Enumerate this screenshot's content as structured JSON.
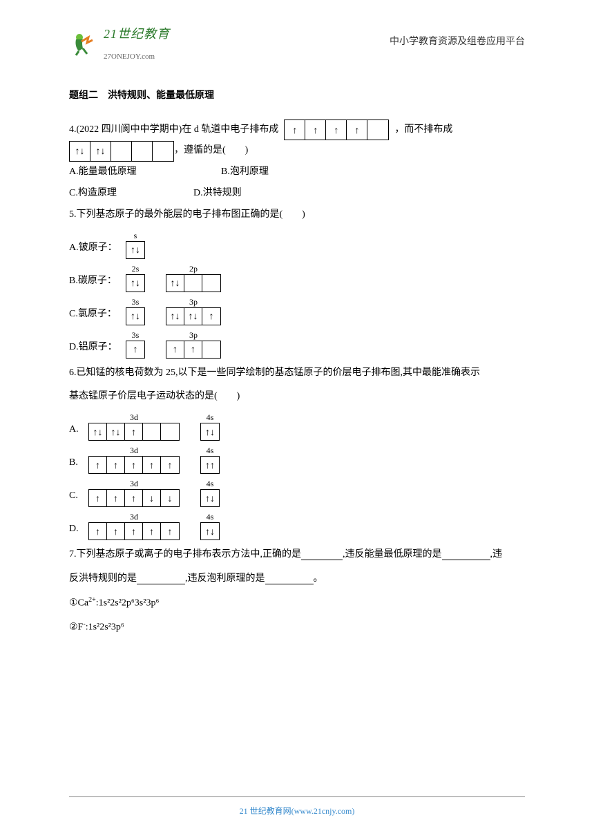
{
  "header": {
    "logo_brand": "21世纪教育",
    "logo_url": "27ONEJOY.com",
    "right": "中小学教育资源及组卷应用平台"
  },
  "section": {
    "title": "题组二　洪特规则、能量最低原理"
  },
  "q4": {
    "prefix": "4.(2022 四川阆中中学期中)在 d 轨道中电子排布成",
    "mid": "，而不排布成",
    "suffix": "，遵循的是(　　)",
    "opts": {
      "a": "A.能量最低原理",
      "b": "B.泡利原理",
      "c": "C.构造原理",
      "d": "D.洪特规则"
    },
    "d1": {
      "boxes": [
        "↑",
        "↑",
        "↑",
        "↑",
        ""
      ]
    },
    "d2": {
      "boxes": [
        "↑↓",
        "↑↓",
        "",
        "",
        ""
      ]
    }
  },
  "q5": {
    "stem": "5.下列基态原子的最外能层的电子排布图正确的是(　　)",
    "a": {
      "pre": "A.铍原子：",
      "g1": {
        "label": "s",
        "boxes": [
          "↑↓"
        ]
      }
    },
    "b": {
      "pre": "B.碳原子：",
      "g1": {
        "label": "2s",
        "boxes": [
          "↑↓"
        ]
      },
      "g2": {
        "label": "2p",
        "boxes": [
          "↑↓",
          "",
          ""
        ]
      }
    },
    "c": {
      "pre": "C.氯原子：",
      "g1": {
        "label": "3s",
        "boxes": [
          "↑↓"
        ]
      },
      "g2": {
        "label": "3p",
        "boxes": [
          "↑↓",
          "↑↓",
          "↑"
        ]
      }
    },
    "d": {
      "pre": "D.铝原子：",
      "g1": {
        "label": "3s",
        "boxes": [
          "↑"
        ]
      },
      "g2": {
        "label": "3p",
        "boxes": [
          "↑",
          "↑",
          ""
        ]
      }
    }
  },
  "q6": {
    "stem1": "6.已知锰的核电荷数为 25,以下是一些同学绘制的基态锰原子的价层电子排布图,其中最能准确表示",
    "stem2": "基态锰原子价层电子运动状态的是(　　)",
    "a": {
      "pre": "A.",
      "g1": {
        "label": "3d",
        "boxes": [
          "↑↓",
          "↑↓",
          "↑",
          "",
          ""
        ]
      },
      "g2": {
        "label": "4s",
        "boxes": [
          "↑↓"
        ]
      }
    },
    "b": {
      "pre": "B.",
      "g1": {
        "label": "3d",
        "boxes": [
          "↑",
          "↑",
          "↑",
          "↑",
          "↑"
        ]
      },
      "g2": {
        "label": "4s",
        "boxes": [
          "↑↑"
        ]
      }
    },
    "c": {
      "pre": "C.",
      "g1": {
        "label": "3d",
        "boxes": [
          "↑",
          "↑",
          "↑",
          "↓",
          "↓"
        ]
      },
      "g2": {
        "label": "4s",
        "boxes": [
          "↑↓"
        ]
      }
    },
    "d": {
      "pre": "D.",
      "g1": {
        "label": "3d",
        "boxes": [
          "↑",
          "↑",
          "↑",
          "↑",
          "↑"
        ]
      },
      "g2": {
        "label": "4s",
        "boxes": [
          "↑↓"
        ]
      }
    }
  },
  "q7": {
    "p1a": "7.下列基态原子或离子的电子排布表示方法中,正确的是",
    "p1b": ",违反能量最低原理的是",
    "p1c": ",违",
    "p2a": "反洪特规则的是",
    "p2b": ",违反泡利原理的是",
    "p2c": "。",
    "i1_pre": "①Ca",
    "i1_sup": "2+",
    "i1_cfg": ":1s²2s²2p⁶3s²3p⁶",
    "i2_pre": "②F",
    "i2_sup": "-",
    "i2_cfg": ":1s²2s²3p⁶"
  },
  "footer": {
    "text": "21 世纪教育网(www.21cnjy.com)"
  },
  "colors": {
    "text": "#000000",
    "link": "#3388cc",
    "logo_green": "#2b7a2b"
  }
}
